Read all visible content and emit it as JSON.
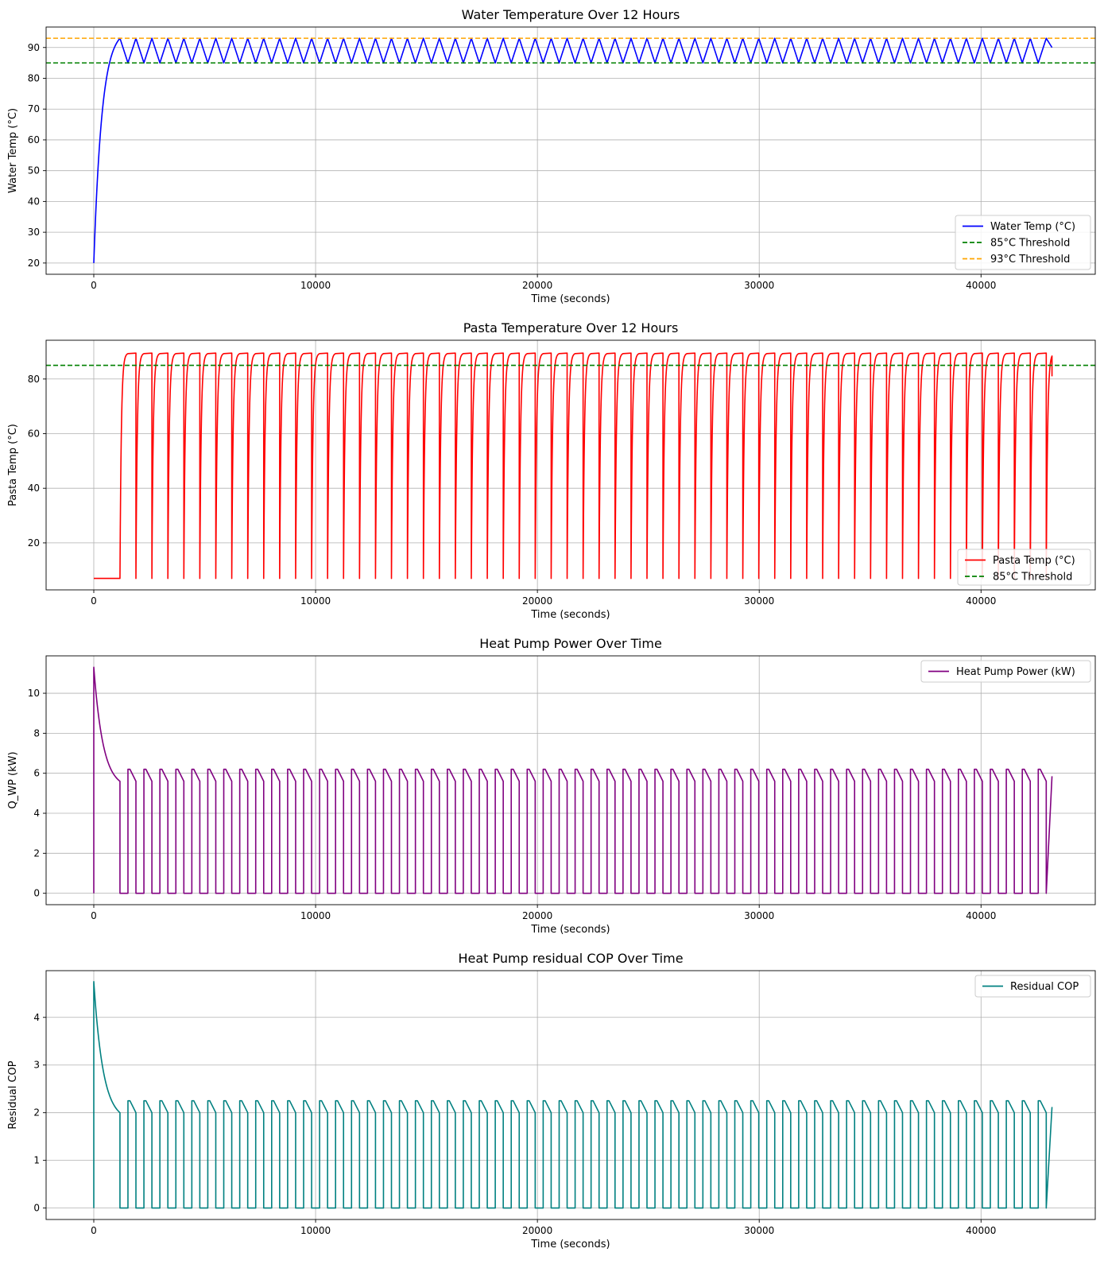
{
  "chart_data": [
    {
      "type": "line",
      "title": "Water Temperature Over 12 Hours",
      "xlabel": "Time (seconds)",
      "ylabel": "Water Temp (°C)",
      "xlim": [
        -2150,
        45150
      ],
      "ylim": [
        16.35,
        96.65
      ],
      "xticks": [
        0,
        10000,
        20000,
        30000,
        40000
      ],
      "yticks": [
        20,
        30,
        40,
        50,
        60,
        70,
        80,
        90
      ],
      "grid": true,
      "legend_position": "lower right",
      "model": "sawtooth",
      "warmup": {
        "start_x": 0,
        "start_y": 20,
        "end_x": 1180,
        "end_y": 93
      },
      "cycle": {
        "start_x": 1180,
        "period": 720,
        "high": 93,
        "low": 85,
        "end_x": 43200,
        "end_y": 90
      },
      "series": [
        {
          "name": "Water Temp (°C)",
          "color": "#0000ff",
          "style": "solid",
          "kind": "model"
        },
        {
          "name": "85°C Threshold",
          "color": "#008000",
          "style": "dashed",
          "kind": "hline",
          "y": 85
        },
        {
          "name": "93°C Threshold",
          "color": "#ffa500",
          "style": "dashed",
          "kind": "hline",
          "y": 93
        }
      ]
    },
    {
      "type": "line",
      "title": "Pasta Temperature Over 12 Hours",
      "xlabel": "Time (seconds)",
      "ylabel": "Pasta Temp (°C)",
      "xlim": [
        -2150,
        45150
      ],
      "ylim": [
        2.8,
        94.2
      ],
      "xticks": [
        0,
        10000,
        20000,
        30000,
        40000
      ],
      "yticks": [
        20,
        40,
        60,
        80
      ],
      "grid": true,
      "legend_position": "lower right",
      "model": "pasta",
      "initial": {
        "y": 7,
        "until_x": 1180
      },
      "cycle": {
        "start_x": 1180,
        "period": 720,
        "top": 89.5,
        "bottom": 7,
        "rise_tau": 60,
        "plateau_start": 360,
        "end_x": 43200,
        "end_y": 81
      },
      "series": [
        {
          "name": "Pasta Temp (°C)",
          "color": "#ff0000",
          "style": "solid",
          "kind": "model"
        },
        {
          "name": "85°C Threshold",
          "color": "#008000",
          "style": "dashed",
          "kind": "hline",
          "y": 85
        }
      ]
    },
    {
      "type": "line",
      "title": "Heat Pump Power Over Time",
      "xlabel": "Time (seconds)",
      "ylabel": "Q_WP (kW)",
      "xlim": [
        -2150,
        45150
      ],
      "ylim": [
        -0.57,
        11.87
      ],
      "xticks": [
        0,
        10000,
        20000,
        30000,
        40000
      ],
      "yticks": [
        0,
        2,
        4,
        6,
        8,
        10
      ],
      "grid": true,
      "legend_position": "upper right",
      "model": "pump",
      "initial": {
        "peak": 11.3,
        "until_x": 1180,
        "end": 5.6,
        "tau": 420
      },
      "cycle": {
        "start_x": 1180,
        "period": 720,
        "on_duration": 360,
        "on_start": 6.2,
        "on_end": 5.6,
        "plateau": 90,
        "off": 0,
        "end_x": 43200,
        "end_y": 5.85
      },
      "series": [
        {
          "name": "Heat Pump Power (kW)",
          "color": "#800080",
          "style": "solid",
          "kind": "model"
        }
      ]
    },
    {
      "type": "line",
      "title": "Heat Pump residual COP Over Time",
      "xlabel": "Time (seconds)",
      "ylabel": "Residual COP",
      "xlim": [
        -2150,
        45150
      ],
      "ylim": [
        -0.24,
        4.98
      ],
      "xticks": [
        0,
        10000,
        20000,
        30000,
        40000
      ],
      "yticks": [
        0,
        1,
        2,
        3,
        4
      ],
      "grid": true,
      "legend_position": "upper right",
      "model": "pump",
      "initial": {
        "peak": 4.75,
        "until_x": 1180,
        "end": 2.0,
        "tau": 420
      },
      "cycle": {
        "start_x": 1180,
        "period": 720,
        "on_duration": 360,
        "on_start": 2.25,
        "on_end": 2.0,
        "plateau": 90,
        "off": 0,
        "end_x": 43200,
        "end_y": 2.12
      },
      "series": [
        {
          "name": "Residual COP",
          "color": "#008080",
          "style": "solid",
          "kind": "model"
        }
      ]
    }
  ]
}
